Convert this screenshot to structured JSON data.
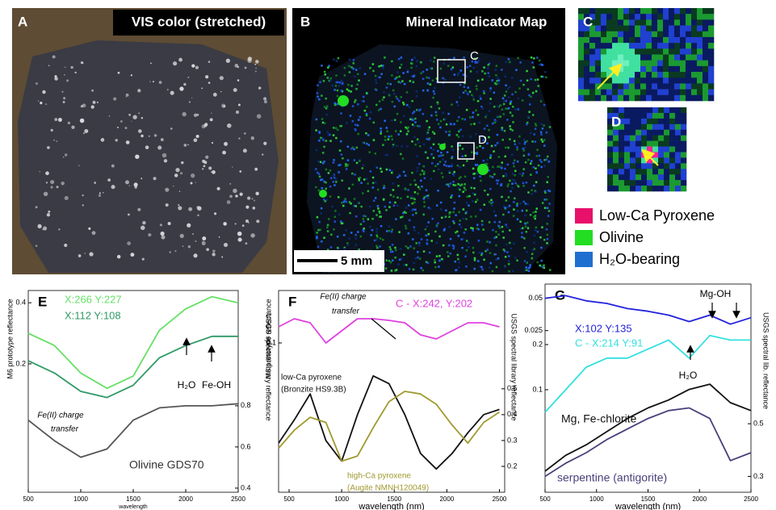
{
  "panels": {
    "A": {
      "label": "A",
      "title": "VIS color (stretched)"
    },
    "B": {
      "label": "B",
      "title": "Mineral Indicator Map",
      "box_labels": [
        "C",
        "D"
      ],
      "scale_bar": "5 mm"
    },
    "C": {
      "label": "C"
    },
    "D": {
      "label": "D"
    },
    "legend": [
      {
        "name": "Low-Ca Pyroxene",
        "color": "#e8106a"
      },
      {
        "name": "Olivine",
        "color": "#22dd22"
      },
      {
        "name": "H₂O-bearing",
        "color": "#1f6fd0"
      }
    ]
  },
  "chart_data": [
    {
      "type": "line",
      "panel_label": "E",
      "xlabel": "wavelength",
      "ylabel": "M6 prototype reflectance",
      "y2label": "USGS spectral library reflectance",
      "x": [
        500,
        750,
        1000,
        1250,
        1500,
        1750,
        2000,
        2250,
        2500
      ],
      "xlim": [
        500,
        2500
      ],
      "xticks": [
        500,
        1000,
        1500,
        2000,
        2500
      ],
      "ylim": [
        -0.22,
        0.44
      ],
      "yticks": [
        0.2,
        0.4
      ],
      "y2lim": [
        0.38,
        1.36
      ],
      "y2ticks": [
        0.4,
        0.6,
        0.8
      ],
      "series": [
        {
          "name": "X:266 Y:227",
          "color": "#66e066",
          "values": [
            0.3,
            0.26,
            0.17,
            0.12,
            0.16,
            0.31,
            0.38,
            0.42,
            0.4
          ]
        },
        {
          "name": "X:112 Y:108",
          "color": "#2f9a66",
          "values": [
            0.21,
            0.17,
            0.11,
            0.09,
            0.13,
            0.22,
            0.26,
            0.29,
            0.29
          ]
        },
        {
          "name": "Olivine  GDS70",
          "color": "#555555",
          "axis": "y2",
          "values": [
            0.73,
            0.63,
            0.55,
            0.59,
            0.73,
            0.79,
            0.8,
            0.8,
            0.81
          ]
        }
      ],
      "annotations": [
        "H₂O",
        "Fe-OH",
        "Fe(II) charge",
        "transfer"
      ]
    },
    {
      "type": "line",
      "panel_label": "F",
      "xlabel": "wavelength  (nm)",
      "ylabel": "M6 prototype reflectance",
      "y2label": "USGS spectral library reflectance",
      "x": [
        400,
        550,
        700,
        850,
        1000,
        1150,
        1300,
        1450,
        1600,
        1750,
        1900,
        2050,
        2200,
        2350,
        2500
      ],
      "xlim": [
        400,
        2550
      ],
      "xticks": [
        500,
        1000,
        1500,
        2000,
        2500
      ],
      "ylim": [
        -0.085,
        0.165
      ],
      "yticks": [
        0.1
      ],
      "y2lim": [
        0.1,
        0.88
      ],
      "y2ticks": [
        0.2,
        0.3,
        0.4,
        0.5
      ],
      "series": [
        {
          "name": "C - X:242, Y:202",
          "color": "#e040e0",
          "values": [
            0.12,
            0.13,
            0.125,
            0.1,
            0.115,
            0.13,
            0.13,
            0.128,
            0.125,
            0.11,
            0.105,
            0.115,
            0.125,
            0.125,
            0.12
          ]
        },
        {
          "name": "low-Ca pyroxene",
          "sample": "(Bronzite HS9.3B)",
          "color": "#111111",
          "axis": "y2",
          "values": [
            0.29,
            0.38,
            0.48,
            0.3,
            0.22,
            0.4,
            0.55,
            0.52,
            0.4,
            0.25,
            0.19,
            0.25,
            0.33,
            0.4,
            0.42
          ]
        },
        {
          "name": "high-Ca pyroxene",
          "sample": "(Augite NMNH120049)",
          "color": "#a09a30",
          "axis": "y2",
          "values": [
            0.27,
            0.34,
            0.39,
            0.37,
            0.22,
            0.24,
            0.35,
            0.45,
            0.49,
            0.48,
            0.44,
            0.36,
            0.29,
            0.37,
            0.41
          ]
        }
      ],
      "annotations": [
        "Fe(II) charge",
        "transfer"
      ]
    },
    {
      "type": "line",
      "panel_label": "G",
      "xlabel": "wavelength  (nm)",
      "y2label": "USGS spectral lib. reflectance",
      "x": [
        500,
        700,
        900,
        1100,
        1300,
        1500,
        1700,
        1900,
        2100,
        2300,
        2500
      ],
      "xlim": [
        500,
        2500
      ],
      "xticks": [
        500,
        1000,
        1500,
        2000,
        2500
      ],
      "ylim": [
        -0.1,
        0.061
      ],
      "yticks": [
        0.025,
        0.05
      ],
      "y3lim": [
        -0.127,
        0.334
      ],
      "y3ticks": [
        0.1,
        0.2
      ],
      "y2lim": [
        0.24,
        1.03
      ],
      "y2ticks": [
        0.3,
        0.5
      ],
      "series": [
        {
          "name": "X:102 Y:135",
          "color": "#2222dd",
          "values": [
            0.05,
            0.052,
            0.048,
            0.046,
            0.042,
            0.04,
            0.037,
            0.032,
            0.037,
            0.03,
            0.035
          ]
        },
        {
          "name": "C - X:214 Y:91",
          "color": "#33e0e0",
          "axis": "y3",
          "values": [
            0.05,
            0.1,
            0.15,
            0.17,
            0.17,
            0.19,
            0.21,
            0.17,
            0.22,
            0.21,
            0.21
          ]
        },
        {
          "name": "Mg, Fe-chlorite",
          "color": "#111111",
          "axis": "y2",
          "values": [
            0.32,
            0.38,
            0.42,
            0.47,
            0.52,
            0.56,
            0.59,
            0.63,
            0.65,
            0.58,
            0.55
          ]
        },
        {
          "name": "serpentine (antigorite)",
          "color": "#4a3f7a",
          "axis": "y2",
          "values": [
            0.3,
            0.35,
            0.39,
            0.44,
            0.48,
            0.52,
            0.55,
            0.56,
            0.52,
            0.36,
            0.39
          ]
        }
      ],
      "annotations": [
        "Mg-OH",
        "H₂O"
      ]
    }
  ]
}
